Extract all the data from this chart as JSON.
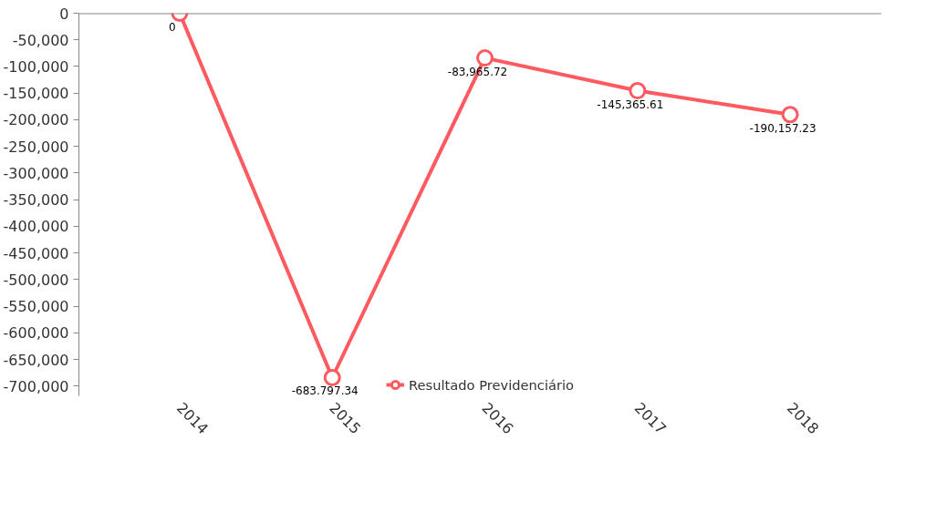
{
  "chart_data": {
    "type": "line",
    "categories": [
      "2014",
      "2015",
      "2016",
      "2017",
      "2018"
    ],
    "series": [
      {
        "name": "Resultado Previdenciário",
        "color": "#ff5a5f",
        "values": [
          0,
          -683797.34,
          -83965.72,
          -145365.61,
          -190157.23
        ],
        "value_labels": [
          "0",
          "-683.797.34",
          "-83,965.72",
          "-145,365.61",
          "-190,157.23"
        ]
      }
    ],
    "ylim": [
      -718000,
      0
    ],
    "yticks": [
      0,
      {
        "value": -50000,
        "label": "-50,000"
      },
      {
        "value": -100000,
        "label": "-100,000"
      },
      {
        "value": -150000,
        "label": "-150,000"
      },
      {
        "value": -200000,
        "label": "-200,000"
      },
      {
        "value": -250000,
        "label": "-250,000"
      },
      {
        "value": -300000,
        "label": "-300,000"
      },
      {
        "value": -350000,
        "label": "-350,000"
      },
      {
        "value": -400000,
        "label": "-400,000"
      },
      {
        "value": -450000,
        "label": "-450,000"
      },
      {
        "value": -500000,
        "label": "-500,000"
      },
      {
        "value": -550000,
        "label": "-550,000"
      },
      {
        "value": -600000,
        "label": "-600,000"
      },
      {
        "value": -650000,
        "label": "-650,000"
      },
      {
        "value": -700000,
        "label": "-700,000"
      }
    ],
    "grid": false,
    "legend": "bottom",
    "marker": "circle",
    "line_style": "solid"
  }
}
